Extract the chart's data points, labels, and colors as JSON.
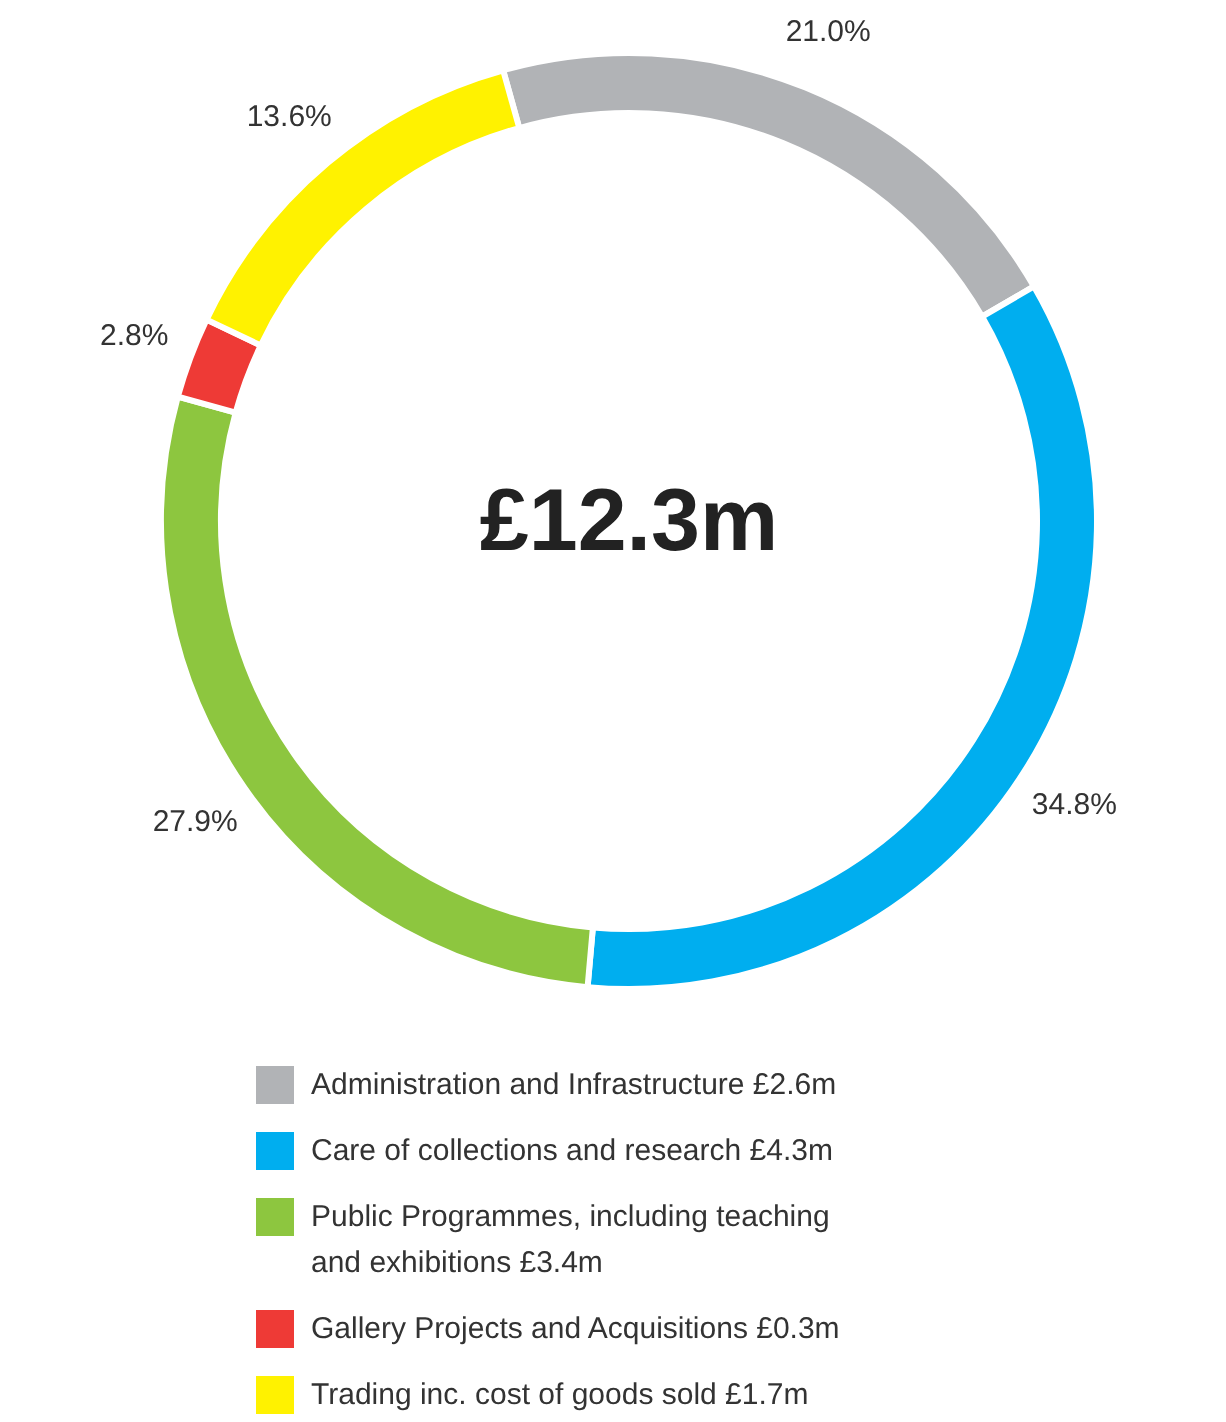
{
  "chart_data": {
    "type": "donut",
    "categories": [
      "Administration and Infrastructure £2.6m",
      "Care of collections and research £4.3m",
      "Public Programmes, including teaching and exhibitions £3.4m",
      "Gallery Projects and Acquisitions £0.3m",
      "Trading inc. cost of goods sold £1.7m"
    ],
    "values": [
      21.0,
      34.8,
      27.9,
      2.8,
      13.6
    ],
    "value_labels": [
      "21.0%",
      "34.8%",
      "27.9%",
      "2.8%",
      "13.6%"
    ],
    "colors": [
      "#b1b3b6",
      "#00aeef",
      "#8dc63f",
      "#ee3a36",
      "#fff200"
    ],
    "annotations": [
      "£12.3m"
    ],
    "legend": "bottom"
  }
}
